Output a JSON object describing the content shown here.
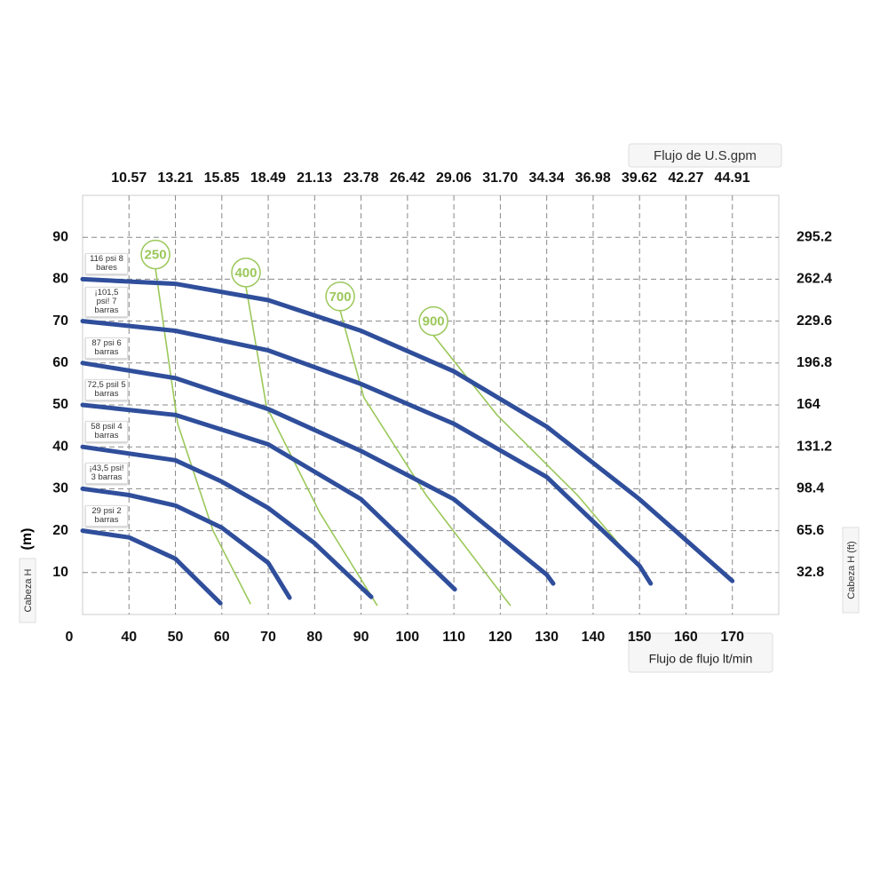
{
  "chart_data": {
    "type": "line",
    "x2label": "Flujo de U.S.gpm",
    "xlabel": "Flujo de flujo lt/min",
    "ylabel": "Cabeza H",
    "ylabel_unit": "(m)",
    "y2label": "Cabeza H (ft)",
    "origin_label": "0",
    "xlim": [
      30,
      180
    ],
    "xticks": [
      40,
      50,
      60,
      70,
      80,
      90,
      100,
      110,
      120,
      130,
      140,
      150,
      160,
      170
    ],
    "x2lim": [
      7.93,
      47.56
    ],
    "x2ticks": [
      10.57,
      13.21,
      15.85,
      18.49,
      21.13,
      23.78,
      26.42,
      29.06,
      {
        "value": 31.7,
        "label": "31.70"
      },
      34.34,
      36.98,
      39.62,
      42.27,
      44.91
    ],
    "ylim": [
      0,
      100
    ],
    "yticks": [
      10,
      20,
      30,
      40,
      50,
      60,
      70,
      80,
      90
    ],
    "y2lim": [
      0,
      328
    ],
    "y2ticks": [
      32.8,
      65.6,
      98.4,
      131.2,
      164,
      196.8,
      229.6,
      262.4,
      295.2
    ],
    "grid": true,
    "series": [
      {
        "name": "116 psi 8 bares",
        "color": "#2f4e9b",
        "x": [
          30,
          50,
          70,
          90,
          110,
          130,
          150,
          170
        ],
        "values": [
          80,
          78.9,
          75,
          67.7,
          58,
          44.8,
          27.5,
          8
        ]
      },
      {
        "name": "¡101,5 psi! 7 barras",
        "color": "#2f4e9b",
        "x": [
          30,
          50,
          70,
          90,
          110,
          130,
          150,
          152.4
        ],
        "values": [
          70,
          67.7,
          63,
          55,
          45.5,
          32.8,
          11.6,
          7.4
        ]
      },
      {
        "name": "87 psi 6 barras",
        "color": "#2f4e9b",
        "x": [
          30,
          50,
          70,
          90,
          110,
          130,
          131.4
        ],
        "values": [
          60,
          56.4,
          49,
          39,
          27.5,
          9.5,
          7.4
        ]
      },
      {
        "name": "72,5 psil 5 barras",
        "color": "#2f4e9b",
        "x": [
          30,
          50,
          70,
          90,
          110.2
        ],
        "values": [
          50,
          47.6,
          40.6,
          27.5,
          6
        ]
      },
      {
        "name": "58 psil 4 barras",
        "color": "#2f4e9b",
        "x": [
          30,
          50,
          60,
          70,
          80,
          92.2
        ],
        "values": [
          40,
          36.8,
          31.7,
          25.4,
          17,
          4.2
        ]
      },
      {
        "name": "¡43,5 psi! 3 barras",
        "color": "#2f4e9b",
        "x": [
          30,
          40,
          50,
          60,
          70,
          74.6
        ],
        "values": [
          30,
          28.5,
          26,
          20.7,
          12.3,
          4
        ]
      },
      {
        "name": "29 psi 2 barras",
        "color": "#2f4e9b",
        "x": [
          30,
          40,
          50,
          59.7
        ],
        "values": [
          20,
          18.4,
          13.3,
          2.7
        ]
      }
    ],
    "speed_curves": [
      {
        "name": "250",
        "color": "#9bc85a",
        "x": [
          45.7,
          50.5,
          58.1,
          66.2
        ],
        "values": [
          82.5,
          45.5,
          20,
          2.5
        ]
      },
      {
        "name": "400",
        "color": "#9bc85a",
        "x": [
          65.2,
          69.6,
          81.1,
          93.5
        ],
        "values": [
          78.2,
          49.7,
          24.3,
          2.1
        ]
      },
      {
        "name": "700",
        "color": "#9bc85a",
        "x": [
          85.5,
          90.6,
          104,
          122.2
        ],
        "values": [
          72.5,
          51.8,
          28.5,
          2.1
        ]
      },
      {
        "name": "900",
        "color": "#9bc85a",
        "x": [
          105.6,
          119.3,
          136.6,
          152.8
        ],
        "values": [
          66.6,
          47.6,
          28.5,
          7.4
        ]
      }
    ]
  }
}
